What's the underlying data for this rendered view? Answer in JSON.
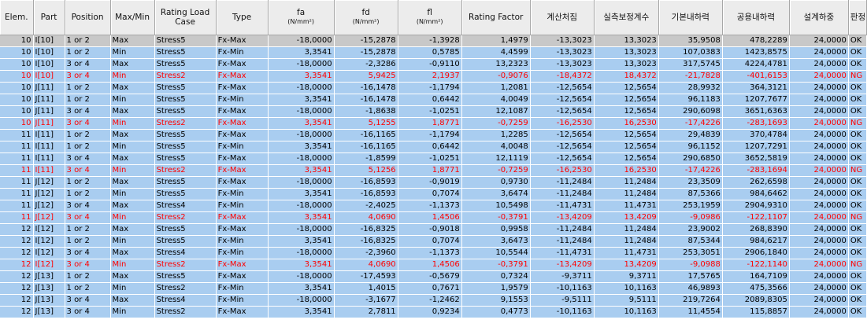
{
  "headers": [
    {
      "label": "Elem."
    },
    {
      "label": "Part"
    },
    {
      "label": "Position"
    },
    {
      "label": "Max/Min"
    },
    {
      "label": "Rating Load Case"
    },
    {
      "label": "Type"
    },
    {
      "label": "fa",
      "unit": "(N/mm²)"
    },
    {
      "label": "fd",
      "unit": "(N/mm²)"
    },
    {
      "label": "fl",
      "unit": "(N/mm²)"
    },
    {
      "label": "Rating Factor"
    },
    {
      "label": "계산처짐"
    },
    {
      "label": "실측보정계수"
    },
    {
      "label": "기본내하력"
    },
    {
      "label": "공용내하력"
    },
    {
      "label": "설계하중"
    },
    {
      "label": "판정"
    }
  ],
  "colors": {
    "selected_row": "#c8c8c8",
    "row": "#a9cdf0",
    "fail_text": "#ff0000",
    "header": "#ececec"
  },
  "rows": [
    [
      "10",
      "I[10]",
      "1 or 2",
      "Max",
      "Stress5",
      "Fx-Max",
      "-18,0000",
      "-15,2878",
      "-1,3928",
      "1,4979",
      "-13,3023",
      "13,3023",
      "35,9508",
      "478,2289",
      "24,0000",
      "OK"
    ],
    [
      "10",
      "I[10]",
      "1 or 2",
      "Min",
      "Stress5",
      "Fx-Min",
      "3,3541",
      "-15,2878",
      "0,5785",
      "4,4599",
      "-13,3023",
      "13,3023",
      "107,0383",
      "1423,8575",
      "24,0000",
      "OK"
    ],
    [
      "10",
      "I[10]",
      "3 or 4",
      "Max",
      "Stress5",
      "Fx-Max",
      "-18,0000",
      "-2,3286",
      "-0,9110",
      "13,2323",
      "-13,3023",
      "13,3023",
      "317,5745",
      "4224,4781",
      "24,0000",
      "OK"
    ],
    [
      "10",
      "I[10]",
      "3 or 4",
      "Min",
      "Stress2",
      "Fx-Max",
      "3,3541",
      "5,9425",
      "2,1937",
      "-0,9076",
      "-18,4372",
      "18,4372",
      "-21,7828",
      "-401,6153",
      "24,0000",
      "NG"
    ],
    [
      "10",
      "J[11]",
      "1 or 2",
      "Max",
      "Stress5",
      "Fx-Max",
      "-18,0000",
      "-16,1478",
      "-1,1794",
      "1,2081",
      "-12,5654",
      "12,5654",
      "28,9932",
      "364,3121",
      "24,0000",
      "OK"
    ],
    [
      "10",
      "J[11]",
      "1 or 2",
      "Min",
      "Stress5",
      "Fx-Min",
      "3,3541",
      "-16,1478",
      "0,6442",
      "4,0049",
      "-12,5654",
      "12,5654",
      "96,1183",
      "1207,7677",
      "24,0000",
      "OK"
    ],
    [
      "10",
      "J[11]",
      "3 or 4",
      "Max",
      "Stress5",
      "Fx-Max",
      "-18,0000",
      "-1,8638",
      "-1,0251",
      "12,1087",
      "-12,5654",
      "12,5654",
      "290,6098",
      "3651,6363",
      "24,0000",
      "OK"
    ],
    [
      "10",
      "J[11]",
      "3 or 4",
      "Min",
      "Stress2",
      "Fx-Max",
      "3,3541",
      "5,1255",
      "1,8771",
      "-0,7259",
      "-16,2530",
      "16,2530",
      "-17,4226",
      "-283,1693",
      "24,0000",
      "NG"
    ],
    [
      "11",
      "I[11]",
      "1 or 2",
      "Max",
      "Stress5",
      "Fx-Max",
      "-18,0000",
      "-16,1165",
      "-1,1794",
      "1,2285",
      "-12,5654",
      "12,5654",
      "29,4839",
      "370,4784",
      "24,0000",
      "OK"
    ],
    [
      "11",
      "I[11]",
      "1 or 2",
      "Min",
      "Stress5",
      "Fx-Min",
      "3,3541",
      "-16,1165",
      "0,6442",
      "4,0048",
      "-12,5654",
      "12,5654",
      "96,1152",
      "1207,7291",
      "24,0000",
      "OK"
    ],
    [
      "11",
      "I[11]",
      "3 or 4",
      "Max",
      "Stress5",
      "Fx-Max",
      "-18,0000",
      "-1,8599",
      "-1,0251",
      "12,1119",
      "-12,5654",
      "12,5654",
      "290,6850",
      "3652,5819",
      "24,0000",
      "OK"
    ],
    [
      "11",
      "I[11]",
      "3 or 4",
      "Min",
      "Stress2",
      "Fx-Max",
      "3,3541",
      "5,1256",
      "1,8771",
      "-0,7259",
      "-16,2530",
      "16,2530",
      "-17,4226",
      "-283,1694",
      "24,0000",
      "NG"
    ],
    [
      "11",
      "J[12]",
      "1 or 2",
      "Max",
      "Stress5",
      "Fx-Max",
      "-18,0000",
      "-16,8593",
      "-0,9019",
      "0,9730",
      "-11,2484",
      "11,2484",
      "23,3509",
      "262,6598",
      "24,0000",
      "OK"
    ],
    [
      "11",
      "J[12]",
      "1 or 2",
      "Min",
      "Stress5",
      "Fx-Min",
      "3,3541",
      "-16,8593",
      "0,7074",
      "3,6474",
      "-11,2484",
      "11,2484",
      "87,5366",
      "984,6462",
      "24,0000",
      "OK"
    ],
    [
      "11",
      "J[12]",
      "3 or 4",
      "Max",
      "Stress4",
      "Fx-Min",
      "-18,0000",
      "-2,4025",
      "-1,1373",
      "10,5498",
      "-11,4731",
      "11,4731",
      "253,1959",
      "2904,9310",
      "24,0000",
      "OK"
    ],
    [
      "11",
      "J[12]",
      "3 or 4",
      "Min",
      "Stress2",
      "Fx-Max",
      "3,3541",
      "4,0690",
      "1,4506",
      "-0,3791",
      "-13,4209",
      "13,4209",
      "-9,0986",
      "-122,1107",
      "24,0000",
      "NG"
    ],
    [
      "12",
      "I[12]",
      "1 or 2",
      "Max",
      "Stress5",
      "Fx-Max",
      "-18,0000",
      "-16,8325",
      "-0,9018",
      "0,9958",
      "-11,2484",
      "11,2484",
      "23,9002",
      "268,8390",
      "24,0000",
      "OK"
    ],
    [
      "12",
      "I[12]",
      "1 or 2",
      "Min",
      "Stress5",
      "Fx-Min",
      "3,3541",
      "-16,8325",
      "0,7074",
      "3,6473",
      "-11,2484",
      "11,2484",
      "87,5344",
      "984,6217",
      "24,0000",
      "OK"
    ],
    [
      "12",
      "I[12]",
      "3 or 4",
      "Max",
      "Stress4",
      "Fx-Min",
      "-18,0000",
      "-2,3960",
      "-1,1373",
      "10,5544",
      "-11,4731",
      "11,4731",
      "253,3051",
      "2906,1840",
      "24,0000",
      "OK"
    ],
    [
      "12",
      "I[12]",
      "3 or 4",
      "Min",
      "Stress2",
      "Fx-Max",
      "3,3541",
      "4,0690",
      "1,4506",
      "-0,3791",
      "-13,4209",
      "13,4209",
      "-9,0988",
      "-122,1140",
      "24,0000",
      "NG"
    ],
    [
      "12",
      "J[13]",
      "1 or 2",
      "Max",
      "Stress5",
      "Fx-Max",
      "-18,0000",
      "-17,4593",
      "-0,5679",
      "0,7324",
      "-9,3711",
      "9,3711",
      "17,5765",
      "164,7109",
      "24,0000",
      "OK"
    ],
    [
      "12",
      "J[13]",
      "1 or 2",
      "Min",
      "Stress2",
      "Fx-Min",
      "3,3541",
      "1,4015",
      "0,7671",
      "1,9579",
      "-10,1163",
      "10,1163",
      "46,9893",
      "475,3566",
      "24,0000",
      "OK"
    ],
    [
      "12",
      "J[13]",
      "3 or 4",
      "Max",
      "Stress4",
      "Fx-Min",
      "-18,0000",
      "-3,1677",
      "-1,2462",
      "9,1553",
      "-9,5111",
      "9,5111",
      "219,7264",
      "2089,8305",
      "24,0000",
      "OK"
    ],
    [
      "12",
      "J[13]",
      "3 or 4",
      "Min",
      "Stress2",
      "Fx-Max",
      "3,3541",
      "2,7811",
      "0,9234",
      "0,4773",
      "-10,1163",
      "10,1163",
      "11,4554",
      "115,8857",
      "24,0000",
      "OK"
    ]
  ],
  "row_states": [
    "selected",
    "normal",
    "normal",
    "fail",
    "normal",
    "normal",
    "normal",
    "fail",
    "normal",
    "normal",
    "normal",
    "fail",
    "normal",
    "normal",
    "normal",
    "fail",
    "normal",
    "normal",
    "normal",
    "fail",
    "normal",
    "normal",
    "normal",
    "normal"
  ]
}
